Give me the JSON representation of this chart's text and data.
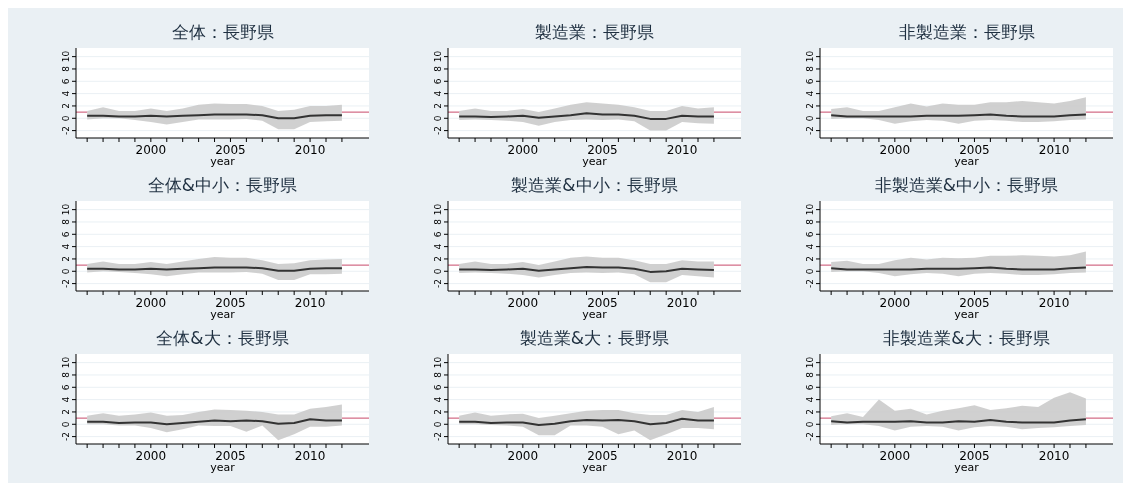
{
  "chart_data": [
    {
      "type": "line",
      "title": "全体：長野県",
      "xlabel": "year",
      "x": [
        1996,
        1997,
        1998,
        1999,
        2000,
        2001,
        2002,
        2003,
        2004,
        2005,
        2006,
        2007,
        2008,
        2009,
        2010,
        2011,
        2012
      ],
      "series": [
        {
          "color": "#333333",
          "values": [
            0.4,
            0.4,
            0.3,
            0.3,
            0.4,
            0.3,
            0.4,
            0.5,
            0.6,
            0.6,
            0.6,
            0.5,
            0.0,
            0.0,
            0.4,
            0.5,
            0.5
          ],
          "lower": [
            -0.2,
            0,
            0,
            -0.3,
            -0.6,
            -1.0,
            -0.6,
            -0.2,
            -0.2,
            -0.2,
            -0.1,
            -0.4,
            -1.8,
            -1.8,
            -0.6,
            -0.5,
            -0.4
          ],
          "upper": [
            1.2,
            1.8,
            1.2,
            1.2,
            1.6,
            1.2,
            1.6,
            2.2,
            2.4,
            2.3,
            2.3,
            2.0,
            1.2,
            1.4,
            2.0,
            2.0,
            2.2
          ]
        }
      ],
      "xlim": [
        1995.3,
        2013.7
      ],
      "ylim": [
        -3.2,
        11.4
      ],
      "xticks": [
        {
          "value": 1996,
          "label": null
        },
        {
          "value": 1997,
          "label": null
        },
        {
          "value": 1998,
          "label": null
        },
        {
          "value": 1999,
          "label": null
        },
        2000,
        {
          "value": 2001,
          "label": null
        },
        {
          "value": 2002,
          "label": null
        },
        {
          "value": 2003,
          "label": null
        },
        {
          "value": 2004,
          "label": null
        },
        2005,
        {
          "value": 2006,
          "label": null
        },
        {
          "value": 2007,
          "label": null
        },
        {
          "value": 2008,
          "label": null
        },
        {
          "value": 2009,
          "label": null
        },
        2010,
        {
          "value": 2011,
          "label": null
        },
        {
          "value": 2012,
          "label": null
        }
      ],
      "yticks": [
        -2,
        0,
        2,
        4,
        6,
        8,
        10
      ],
      "grid": "y",
      "ref_lines": [
        {
          "axis": "y",
          "value": 1,
          "color": "#c84a6a"
        }
      ]
    },
    {
      "type": "line",
      "title": "製造業：長野県",
      "xlabel": "year",
      "x": [
        1996,
        1997,
        1998,
        1999,
        2000,
        2001,
        2002,
        2003,
        2004,
        2005,
        2006,
        2007,
        2008,
        2009,
        2010,
        2011,
        2012
      ],
      "series": [
        {
          "color": "#333333",
          "values": [
            0.3,
            0.3,
            0.2,
            0.3,
            0.4,
            0.1,
            0.3,
            0.5,
            0.8,
            0.6,
            0.6,
            0.4,
            -0.1,
            -0.1,
            0.4,
            0.3,
            0.3
          ],
          "lower": [
            -0.3,
            -0.2,
            -0.3,
            -0.4,
            -0.6,
            -1.2,
            -0.6,
            -0.3,
            -0.2,
            -0.3,
            -0.2,
            -0.5,
            -2.0,
            -2.0,
            -0.6,
            -0.8,
            -0.9
          ],
          "upper": [
            1.2,
            1.6,
            1.2,
            1.2,
            1.5,
            1.0,
            1.6,
            2.2,
            2.6,
            2.4,
            2.2,
            1.8,
            1.2,
            1.2,
            2.0,
            1.6,
            1.8
          ]
        }
      ],
      "xlim": [
        1995.3,
        2013.7
      ],
      "ylim": [
        -3.2,
        11.4
      ],
      "xticks": [
        {
          "value": 1996,
          "label": null
        },
        {
          "value": 1997,
          "label": null
        },
        {
          "value": 1998,
          "label": null
        },
        {
          "value": 1999,
          "label": null
        },
        2000,
        {
          "value": 2001,
          "label": null
        },
        {
          "value": 2002,
          "label": null
        },
        {
          "value": 2003,
          "label": null
        },
        {
          "value": 2004,
          "label": null
        },
        2005,
        {
          "value": 2006,
          "label": null
        },
        {
          "value": 2007,
          "label": null
        },
        {
          "value": 2008,
          "label": null
        },
        {
          "value": 2009,
          "label": null
        },
        2010,
        {
          "value": 2011,
          "label": null
        },
        {
          "value": 2012,
          "label": null
        }
      ],
      "yticks": [
        -2,
        0,
        2,
        4,
        6,
        8,
        10
      ],
      "grid": "y",
      "ref_lines": [
        {
          "axis": "y",
          "value": 1,
          "color": "#c84a6a"
        }
      ]
    },
    {
      "type": "line",
      "title": "非製造業：長野県",
      "xlabel": "year",
      "x": [
        1996,
        1997,
        1998,
        1999,
        2000,
        2001,
        2002,
        2003,
        2004,
        2005,
        2006,
        2007,
        2008,
        2009,
        2010,
        2011,
        2012
      ],
      "series": [
        {
          "color": "#333333",
          "values": [
            0.5,
            0.3,
            0.3,
            0.3,
            0.3,
            0.3,
            0.4,
            0.4,
            0.4,
            0.5,
            0.6,
            0.4,
            0.3,
            0.3,
            0.3,
            0.5,
            0.6
          ],
          "lower": [
            -0.1,
            0,
            0,
            -0.3,
            -0.9,
            -0.5,
            -0.3,
            -0.4,
            -0.9,
            -0.4,
            -0.3,
            -0.4,
            -0.6,
            -0.6,
            -0.5,
            -0.3,
            -0.2
          ],
          "upper": [
            1.5,
            1.8,
            1.2,
            1.2,
            1.8,
            2.4,
            1.9,
            2.4,
            2.2,
            2.2,
            2.6,
            2.6,
            2.8,
            2.6,
            2.4,
            2.8,
            3.4
          ]
        }
      ],
      "xlim": [
        1995.3,
        2013.7
      ],
      "ylim": [
        -3.2,
        11.4
      ],
      "xticks": [
        {
          "value": 1996,
          "label": null
        },
        {
          "value": 1997,
          "label": null
        },
        {
          "value": 1998,
          "label": null
        },
        {
          "value": 1999,
          "label": null
        },
        2000,
        {
          "value": 2001,
          "label": null
        },
        {
          "value": 2002,
          "label": null
        },
        {
          "value": 2003,
          "label": null
        },
        {
          "value": 2004,
          "label": null
        },
        2005,
        {
          "value": 2006,
          "label": null
        },
        {
          "value": 2007,
          "label": null
        },
        {
          "value": 2008,
          "label": null
        },
        {
          "value": 2009,
          "label": null
        },
        2010,
        {
          "value": 2011,
          "label": null
        },
        {
          "value": 2012,
          "label": null
        }
      ],
      "yticks": [
        -2,
        0,
        2,
        4,
        6,
        8,
        10
      ],
      "grid": "y",
      "ref_lines": [
        {
          "axis": "y",
          "value": 1,
          "color": "#c84a6a"
        }
      ]
    },
    {
      "type": "line",
      "title": "全体&中小：長野県",
      "xlabel": "year",
      "x": [
        1996,
        1997,
        1998,
        1999,
        2000,
        2001,
        2002,
        2003,
        2004,
        2005,
        2006,
        2007,
        2008,
        2009,
        2010,
        2011,
        2012
      ],
      "series": [
        {
          "color": "#333333",
          "values": [
            0.4,
            0.4,
            0.3,
            0.3,
            0.4,
            0.3,
            0.4,
            0.5,
            0.6,
            0.6,
            0.6,
            0.5,
            0.1,
            0.1,
            0.4,
            0.5,
            0.5
          ],
          "lower": [
            -0.2,
            0,
            -0.1,
            -0.3,
            -0.5,
            -0.8,
            -0.5,
            -0.2,
            -0.2,
            -0.2,
            -0.1,
            -0.4,
            -1.4,
            -1.4,
            -0.5,
            -0.5,
            -0.4
          ],
          "upper": [
            1.2,
            1.6,
            1.2,
            1.2,
            1.5,
            1.2,
            1.6,
            2.0,
            2.3,
            2.2,
            2.2,
            1.8,
            1.2,
            1.3,
            1.8,
            1.9,
            2.0
          ]
        }
      ],
      "xlim": [
        1995.3,
        2013.7
      ],
      "ylim": [
        -3.2,
        11.4
      ],
      "xticks": [
        {
          "value": 1996,
          "label": null
        },
        {
          "value": 1997,
          "label": null
        },
        {
          "value": 1998,
          "label": null
        },
        {
          "value": 1999,
          "label": null
        },
        2000,
        {
          "value": 2001,
          "label": null
        },
        {
          "value": 2002,
          "label": null
        },
        {
          "value": 2003,
          "label": null
        },
        {
          "value": 2004,
          "label": null
        },
        2005,
        {
          "value": 2006,
          "label": null
        },
        {
          "value": 2007,
          "label": null
        },
        {
          "value": 2008,
          "label": null
        },
        {
          "value": 2009,
          "label": null
        },
        2010,
        {
          "value": 2011,
          "label": null
        },
        {
          "value": 2012,
          "label": null
        }
      ],
      "yticks": [
        -2,
        0,
        2,
        4,
        6,
        8,
        10
      ],
      "grid": "y",
      "ref_lines": [
        {
          "axis": "y",
          "value": 1,
          "color": "#c84a6a"
        }
      ]
    },
    {
      "type": "line",
      "title": "製造業&中小：長野県",
      "xlabel": "year",
      "x": [
        1996,
        1997,
        1998,
        1999,
        2000,
        2001,
        2002,
        2003,
        2004,
        2005,
        2006,
        2007,
        2008,
        2009,
        2010,
        2011,
        2012
      ],
      "series": [
        {
          "color": "#333333",
          "values": [
            0.3,
            0.3,
            0.2,
            0.3,
            0.4,
            0.1,
            0.3,
            0.5,
            0.7,
            0.6,
            0.6,
            0.4,
            -0.1,
            0.0,
            0.4,
            0.3,
            0.2
          ],
          "lower": [
            -0.3,
            -0.2,
            -0.3,
            -0.4,
            -0.6,
            -1.0,
            -0.6,
            -0.3,
            -0.2,
            -0.3,
            -0.2,
            -0.5,
            -1.8,
            -1.8,
            -0.6,
            -0.8,
            -1.0
          ],
          "upper": [
            1.2,
            1.6,
            1.2,
            1.2,
            1.5,
            1.0,
            1.6,
            2.2,
            2.4,
            2.2,
            2.2,
            1.8,
            1.2,
            1.2,
            1.8,
            1.6,
            1.6
          ]
        }
      ],
      "xlim": [
        1995.3,
        2013.7
      ],
      "ylim": [
        -3.2,
        11.4
      ],
      "xticks": [
        {
          "value": 1996,
          "label": null
        },
        {
          "value": 1997,
          "label": null
        },
        {
          "value": 1998,
          "label": null
        },
        {
          "value": 1999,
          "label": null
        },
        2000,
        {
          "value": 2001,
          "label": null
        },
        {
          "value": 2002,
          "label": null
        },
        {
          "value": 2003,
          "label": null
        },
        {
          "value": 2004,
          "label": null
        },
        2005,
        {
          "value": 2006,
          "label": null
        },
        {
          "value": 2007,
          "label": null
        },
        {
          "value": 2008,
          "label": null
        },
        {
          "value": 2009,
          "label": null
        },
        2010,
        {
          "value": 2011,
          "label": null
        },
        {
          "value": 2012,
          "label": null
        }
      ],
      "yticks": [
        -2,
        0,
        2,
        4,
        6,
        8,
        10
      ],
      "grid": "y",
      "ref_lines": [
        {
          "axis": "y",
          "value": 1,
          "color": "#c84a6a"
        }
      ]
    },
    {
      "type": "line",
      "title": "非製造業&中小：長野県",
      "xlabel": "year",
      "x": [
        1996,
        1997,
        1998,
        1999,
        2000,
        2001,
        2002,
        2003,
        2004,
        2005,
        2006,
        2007,
        2008,
        2009,
        2010,
        2011,
        2012
      ],
      "series": [
        {
          "color": "#333333",
          "values": [
            0.5,
            0.3,
            0.3,
            0.3,
            0.3,
            0.3,
            0.4,
            0.4,
            0.4,
            0.5,
            0.6,
            0.4,
            0.3,
            0.3,
            0.3,
            0.5,
            0.6
          ],
          "lower": [
            -0.1,
            0,
            0,
            -0.3,
            -0.8,
            -0.5,
            -0.3,
            -0.4,
            -0.8,
            -0.4,
            -0.3,
            -0.4,
            -0.6,
            -0.6,
            -0.5,
            -0.3,
            -0.2
          ],
          "upper": [
            1.5,
            1.7,
            1.2,
            1.2,
            1.8,
            2.2,
            1.9,
            2.2,
            2.1,
            2.2,
            2.5,
            2.5,
            2.6,
            2.5,
            2.4,
            2.6,
            3.2
          ]
        }
      ],
      "xlim": [
        1995.3,
        2013.7
      ],
      "ylim": [
        -3.2,
        11.4
      ],
      "xticks": [
        {
          "value": 1996,
          "label": null
        },
        {
          "value": 1997,
          "label": null
        },
        {
          "value": 1998,
          "label": null
        },
        {
          "value": 1999,
          "label": null
        },
        2000,
        {
          "value": 2001,
          "label": null
        },
        {
          "value": 2002,
          "label": null
        },
        {
          "value": 2003,
          "label": null
        },
        {
          "value": 2004,
          "label": null
        },
        2005,
        {
          "value": 2006,
          "label": null
        },
        {
          "value": 2007,
          "label": null
        },
        {
          "value": 2008,
          "label": null
        },
        {
          "value": 2009,
          "label": null
        },
        2010,
        {
          "value": 2011,
          "label": null
        },
        {
          "value": 2012,
          "label": null
        }
      ],
      "yticks": [
        -2,
        0,
        2,
        4,
        6,
        8,
        10
      ],
      "grid": "y",
      "ref_lines": [
        {
          "axis": "y",
          "value": 1,
          "color": "#c84a6a"
        }
      ]
    },
    {
      "type": "line",
      "title": "全体&大：長野県",
      "xlabel": "year",
      "x": [
        1996,
        1997,
        1998,
        1999,
        2000,
        2001,
        2002,
        2003,
        2004,
        2005,
        2006,
        2007,
        2008,
        2009,
        2010,
        2011,
        2012
      ],
      "series": [
        {
          "color": "#333333",
          "values": [
            0.4,
            0.4,
            0.2,
            0.3,
            0.3,
            0.0,
            0.2,
            0.4,
            0.6,
            0.5,
            0.6,
            0.5,
            0.1,
            0.2,
            0.8,
            0.6,
            0.6
          ],
          "lower": [
            0,
            0,
            -0.2,
            -0.2,
            -0.6,
            -1.3,
            -0.8,
            -0.2,
            -0.3,
            -0.3,
            -1.2,
            -0.2,
            -2.6,
            -1.6,
            -0.4,
            -0.4,
            -0.2
          ],
          "upper": [
            1.4,
            1.8,
            1.4,
            1.6,
            1.9,
            1.4,
            1.5,
            2.0,
            2.4,
            2.3,
            2.2,
            2.0,
            1.6,
            1.6,
            2.5,
            2.8,
            3.2
          ]
        }
      ],
      "xlim": [
        1995.3,
        2013.7
      ],
      "ylim": [
        -3.2,
        11.4
      ],
      "xticks": [
        {
          "value": 1996,
          "label": null
        },
        {
          "value": 1997,
          "label": null
        },
        {
          "value": 1998,
          "label": null
        },
        {
          "value": 1999,
          "label": null
        },
        2000,
        {
          "value": 2001,
          "label": null
        },
        {
          "value": 2002,
          "label": null
        },
        {
          "value": 2003,
          "label": null
        },
        {
          "value": 2004,
          "label": null
        },
        2005,
        {
          "value": 2006,
          "label": null
        },
        {
          "value": 2007,
          "label": null
        },
        {
          "value": 2008,
          "label": null
        },
        {
          "value": 2009,
          "label": null
        },
        2010,
        {
          "value": 2011,
          "label": null
        },
        {
          "value": 2012,
          "label": null
        }
      ],
      "yticks": [
        -2,
        0,
        2,
        4,
        6,
        8,
        10
      ],
      "grid": "y",
      "ref_lines": [
        {
          "axis": "y",
          "value": 1,
          "color": "#c84a6a"
        }
      ]
    },
    {
      "type": "line",
      "title": "製造業&大：長野県",
      "xlabel": "year",
      "x": [
        1996,
        1997,
        1998,
        1999,
        2000,
        2001,
        2002,
        2003,
        2004,
        2005,
        2006,
        2007,
        2008,
        2009,
        2010,
        2011,
        2012
      ],
      "series": [
        {
          "color": "#333333",
          "values": [
            0.4,
            0.4,
            0.2,
            0.3,
            0.3,
            -0.1,
            0.1,
            0.5,
            0.7,
            0.6,
            0.7,
            0.5,
            0.0,
            0.2,
            0.9,
            0.6,
            0.6
          ],
          "lower": [
            0,
            0,
            -0.1,
            -0.2,
            -0.4,
            -1.8,
            -1.8,
            -0.2,
            -0.2,
            -0.4,
            -1.6,
            -1.0,
            -2.6,
            -1.6,
            -0.6,
            -0.6,
            -0.8
          ],
          "upper": [
            1.4,
            1.9,
            1.4,
            1.6,
            1.7,
            1.0,
            1.4,
            1.8,
            2.2,
            2.3,
            2.3,
            1.8,
            1.5,
            1.5,
            2.3,
            2.0,
            2.8
          ]
        }
      ],
      "xlim": [
        1995.3,
        2013.7
      ],
      "ylim": [
        -3.2,
        11.4
      ],
      "xticks": [
        {
          "value": 1996,
          "label": null
        },
        {
          "value": 1997,
          "label": null
        },
        {
          "value": 1998,
          "label": null
        },
        {
          "value": 1999,
          "label": null
        },
        2000,
        {
          "value": 2001,
          "label": null
        },
        {
          "value": 2002,
          "label": null
        },
        {
          "value": 2003,
          "label": null
        },
        {
          "value": 2004,
          "label": null
        },
        2005,
        {
          "value": 2006,
          "label": null
        },
        {
          "value": 2007,
          "label": null
        },
        {
          "value": 2008,
          "label": null
        },
        {
          "value": 2009,
          "label": null
        },
        2010,
        {
          "value": 2011,
          "label": null
        },
        {
          "value": 2012,
          "label": null
        }
      ],
      "yticks": [
        -2,
        0,
        2,
        4,
        6,
        8,
        10
      ],
      "grid": "y",
      "ref_lines": [
        {
          "axis": "y",
          "value": 1,
          "color": "#c84a6a"
        }
      ]
    },
    {
      "type": "line",
      "title": "非製造業&大：長野県",
      "xlabel": "year",
      "x": [
        1996,
        1997,
        1998,
        1999,
        2000,
        2001,
        2002,
        2003,
        2004,
        2005,
        2006,
        2007,
        2008,
        2009,
        2010,
        2011,
        2012
      ],
      "series": [
        {
          "color": "#333333",
          "values": [
            0.5,
            0.3,
            0.4,
            0.4,
            0.4,
            0.5,
            0.3,
            0.3,
            0.5,
            0.4,
            0.7,
            0.4,
            0.3,
            0.3,
            0.3,
            0.6,
            0.8
          ],
          "lower": [
            -0.1,
            0,
            0,
            -0.3,
            -1.0,
            -0.4,
            -0.3,
            -0.4,
            -1.0,
            -0.5,
            -0.3,
            -0.4,
            -0.8,
            -0.6,
            -0.5,
            -0.3,
            -0.1
          ],
          "upper": [
            1.3,
            1.8,
            1.2,
            4.0,
            2.2,
            2.5,
            1.6,
            2.2,
            2.6,
            3.1,
            2.3,
            2.6,
            3.0,
            2.8,
            4.3,
            5.2,
            4.2
          ]
        }
      ],
      "xlim": [
        1995.3,
        2013.7
      ],
      "ylim": [
        -3.2,
        11.4
      ],
      "xticks": [
        {
          "value": 1996,
          "label": null
        },
        {
          "value": 1997,
          "label": null
        },
        {
          "value": 1998,
          "label": null
        },
        {
          "value": 1999,
          "label": null
        },
        2000,
        {
          "value": 2001,
          "label": null
        },
        {
          "value": 2002,
          "label": null
        },
        {
          "value": 2003,
          "label": null
        },
        {
          "value": 2004,
          "label": null
        },
        2005,
        {
          "value": 2006,
          "label": null
        },
        {
          "value": 2007,
          "label": null
        },
        {
          "value": 2008,
          "label": null
        },
        {
          "value": 2009,
          "label": null
        },
        2010,
        {
          "value": 2011,
          "label": null
        },
        {
          "value": 2012,
          "label": null
        }
      ],
      "yticks": [
        -2,
        0,
        2,
        4,
        6,
        8,
        10
      ],
      "grid": "y",
      "ref_lines": [
        {
          "axis": "y",
          "value": 1,
          "color": "#c84a6a"
        }
      ]
    }
  ]
}
